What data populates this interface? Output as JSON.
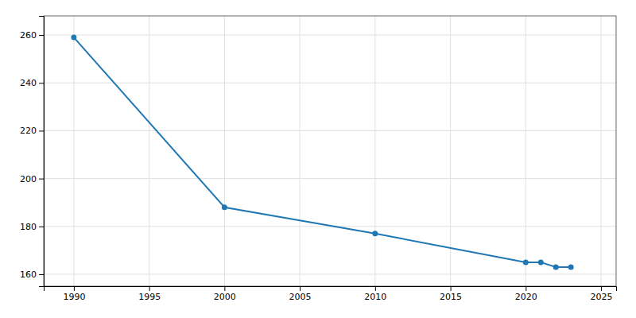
{
  "chart_data": {
    "type": "line",
    "x": [
      1990,
      2000,
      2010,
      2020,
      2021,
      2022,
      2023
    ],
    "values": [
      259,
      188,
      177,
      165,
      165,
      163,
      163
    ],
    "xlim": [
      1988,
      2026
    ],
    "ylim": [
      155,
      268
    ],
    "xticks": [
      1990,
      1995,
      2000,
      2005,
      2010,
      2015,
      2020,
      2025
    ],
    "yticks": [
      160,
      180,
      200,
      220,
      240,
      260
    ],
    "grid": true,
    "marker": "circle"
  }
}
